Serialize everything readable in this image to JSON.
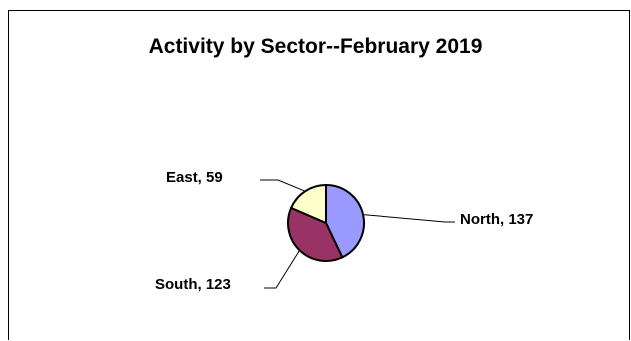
{
  "chart_data": {
    "type": "pie",
    "title": "Activity by Sector--February 2019",
    "slices": [
      {
        "label": "North",
        "value": 137,
        "color": "#9999FF"
      },
      {
        "label": "South",
        "value": 123,
        "color": "#993366"
      },
      {
        "label": "East",
        "value": 59,
        "color": "#FFFFCC"
      }
    ],
    "data_labels": [
      "North, 137",
      "South, 123",
      "East, 59"
    ],
    "legend": "none"
  }
}
